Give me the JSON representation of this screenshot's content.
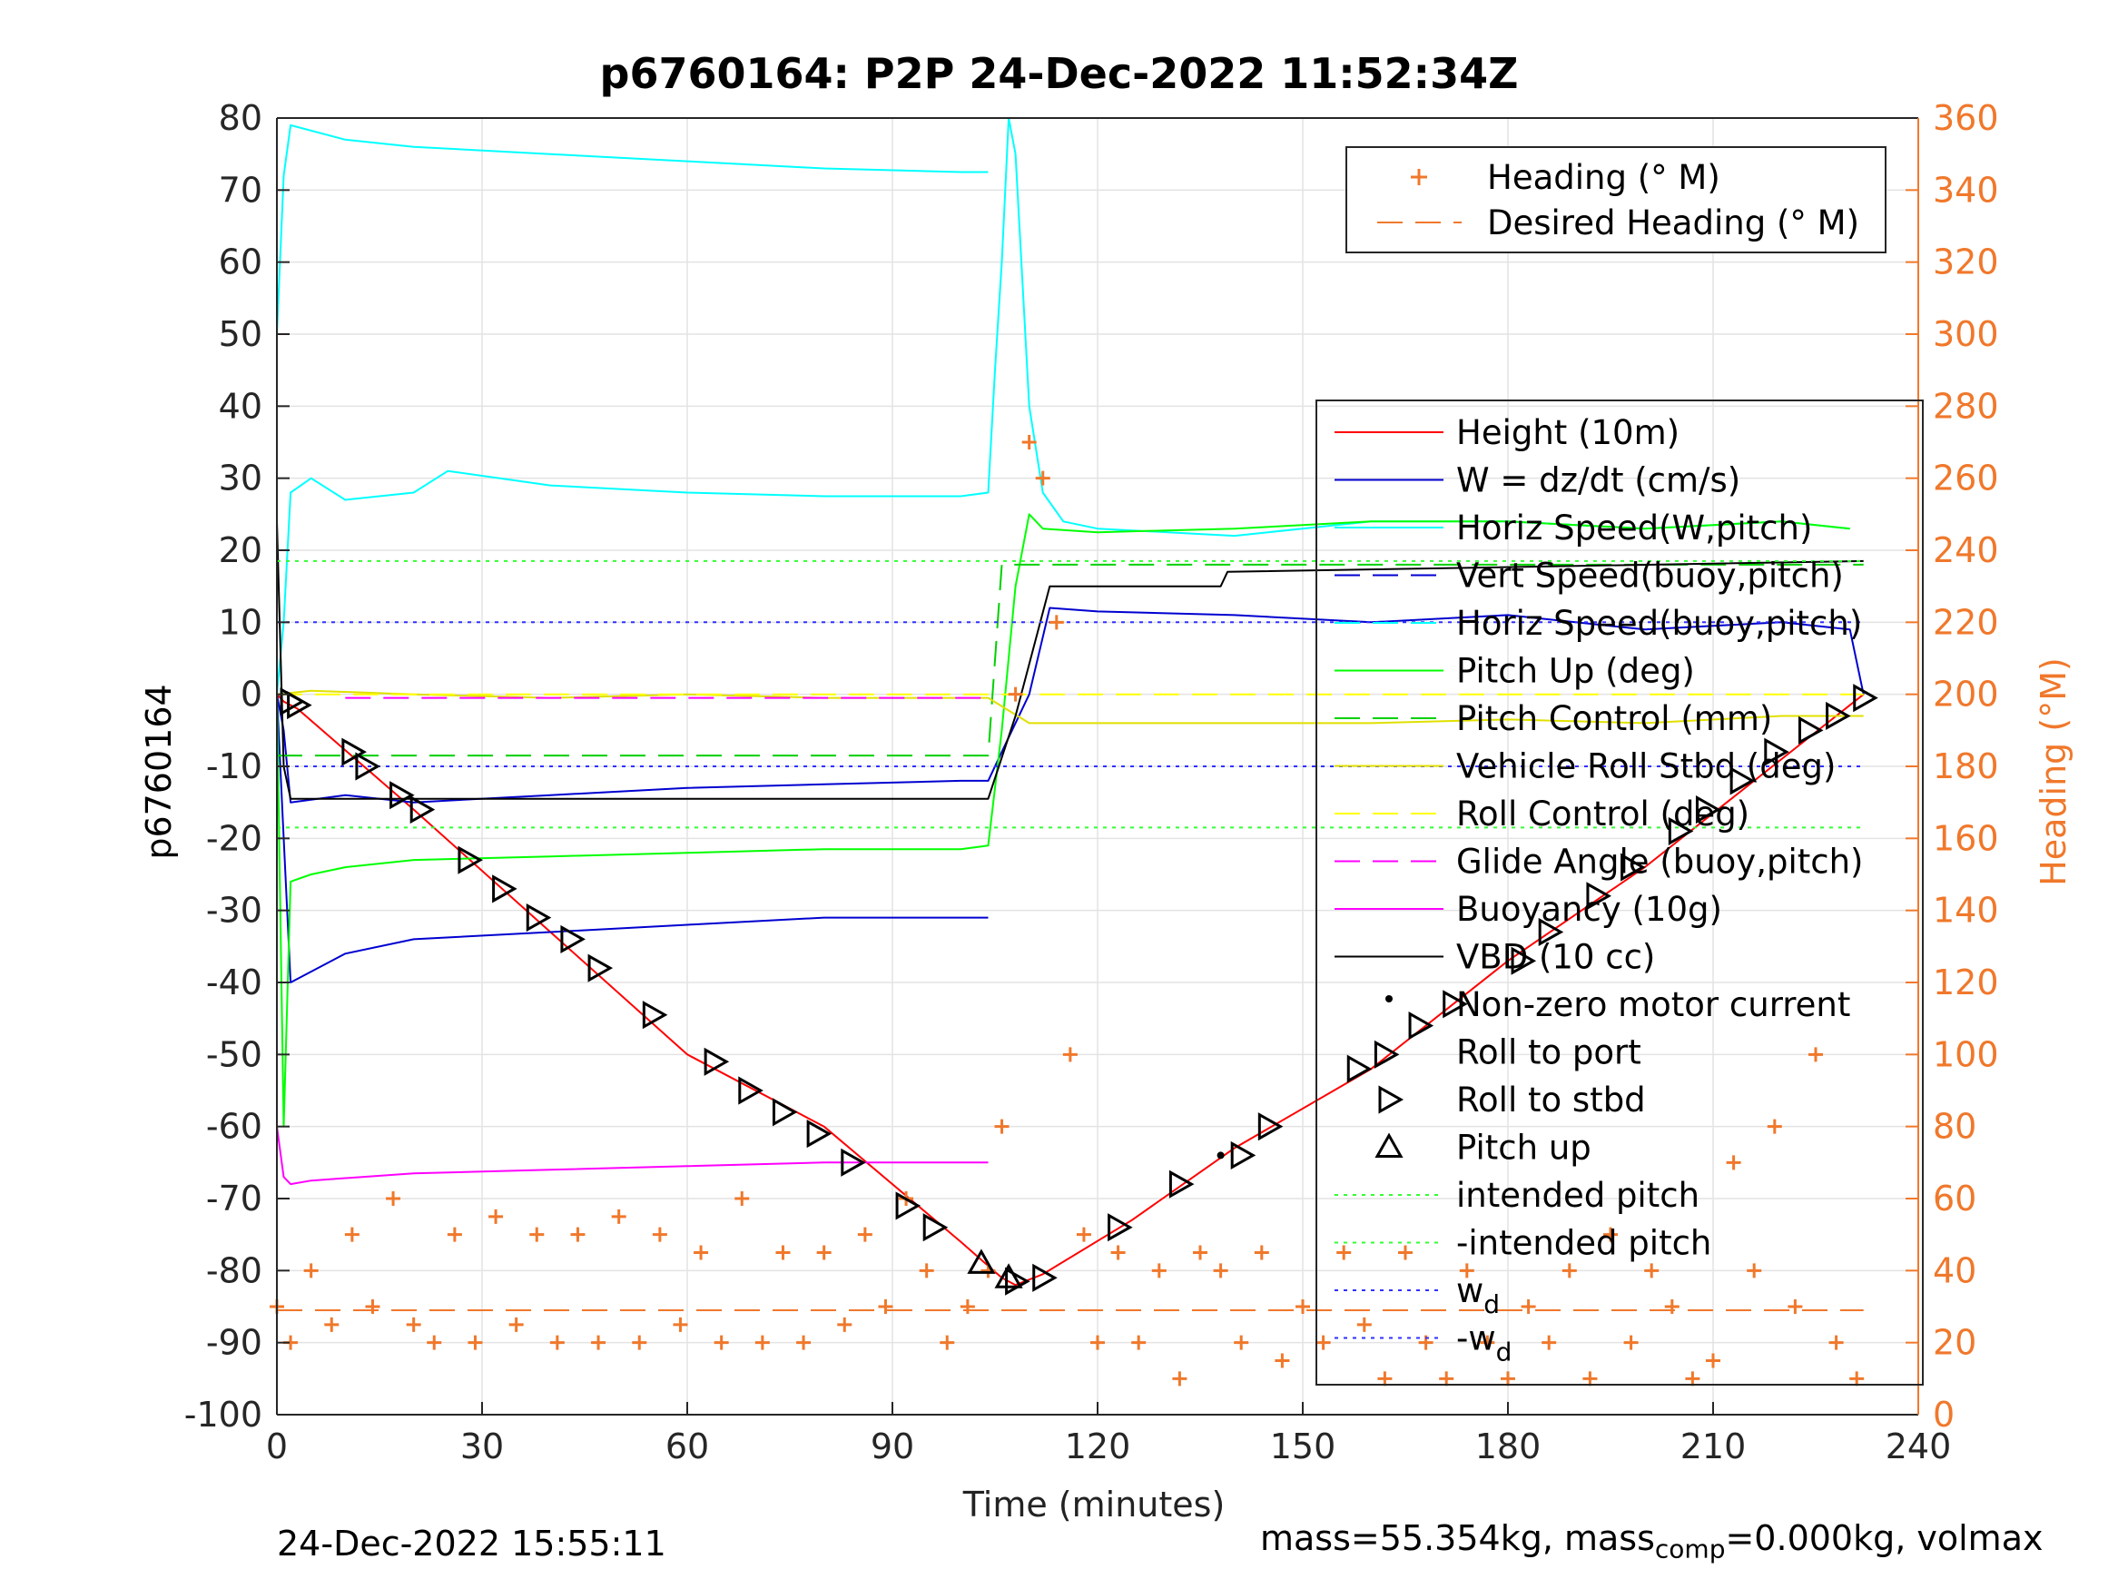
{
  "chart_data": {
    "type": "line",
    "title": "p6760164: P2P 24-Dec-2022 11:52:34Z",
    "xlabel": "Time (minutes)",
    "ylabel_left": "p6760164",
    "ylabel_right": "Heading (°M)",
    "xlim": [
      0,
      240
    ],
    "ylim_left": [
      -100,
      80
    ],
    "ylim_right": [
      0,
      360
    ],
    "x_ticks": [
      "0",
      "30",
      "60",
      "90",
      "120",
      "150",
      "180",
      "210",
      "240"
    ],
    "y_left_ticks": [
      "80",
      "70",
      "60",
      "50",
      "40",
      "30",
      "20",
      "10",
      "0",
      "-10",
      "-20",
      "-30",
      "-40",
      "-50",
      "-60",
      "-70",
      "-80",
      "-90",
      "-100"
    ],
    "y_right_ticks": [
      "360",
      "340",
      "320",
      "300",
      "280",
      "260",
      "240",
      "220",
      "200",
      "180",
      "160",
      "140",
      "120",
      "100",
      "80",
      "60",
      "40",
      "20",
      "0"
    ],
    "grid": true,
    "legend_top": {
      "placement": "top-right",
      "entries": [
        "Heading (° M)",
        "Desired Heading (° M)"
      ]
    },
    "legend_main": {
      "placement": "right",
      "entries": [
        "Height (10m)",
        "W = dz/dt (cm/s)",
        "Horiz Speed(W,pitch)",
        "Vert Speed(buoy,pitch)",
        "Horiz Speed(buoy,pitch)",
        "Pitch Up (deg)",
        "Pitch Control (mm)",
        "Vehicle Roll Stbd (deg)",
        "Roll Control (deg)",
        "Glide Angle (buoy,pitch)",
        "Buoyancy (10g)",
        "VBD (10 cc)",
        "Non-zero motor current",
        "Roll to port",
        "Roll to stbd",
        "Pitch up",
        "intended pitch",
        "-intended pitch",
        "w",
        "-w"
      ],
      "subscript": "d"
    },
    "series": [
      {
        "name": "Height (10m)",
        "color": "#ff0000",
        "x": [
          0,
          1,
          3,
          20,
          40,
          60,
          80,
          100,
          106,
          108,
          112,
          125,
          140,
          160,
          180,
          200,
          220,
          232
        ],
        "y": [
          0,
          -1,
          -2,
          -16,
          -33,
          -50,
          -60,
          -76,
          -81,
          -82,
          -80.5,
          -73,
          -63,
          -52,
          -37,
          -24,
          -9,
          0
        ]
      },
      {
        "name": "W = dz/dt (cm/s)",
        "color": "#0000d0",
        "x": [
          0,
          1,
          2,
          10,
          20,
          40,
          60,
          80,
          100,
          104,
          106,
          110,
          113,
          120,
          140,
          160,
          180,
          200,
          220,
          230,
          232
        ],
        "y": [
          0,
          -5,
          -15,
          -14,
          -15,
          -14,
          -13,
          -12.5,
          -12,
          -12,
          -8,
          0,
          12,
          11.5,
          11,
          10,
          11,
          9,
          10,
          9,
          0
        ]
      },
      {
        "name": "Horiz Speed(W,pitch)",
        "color": "#00ffff",
        "x": [
          0,
          1,
          2,
          5,
          10,
          20,
          25,
          40,
          60,
          80,
          100,
          104,
          105,
          106,
          107,
          108,
          110,
          112,
          115,
          120,
          140,
          160,
          180,
          200,
          220,
          230
        ],
        "y": [
          0,
          10,
          28,
          30,
          27,
          28,
          31,
          29,
          28,
          27.5,
          27.5,
          28,
          45,
          60,
          80,
          75,
          40,
          28,
          24,
          23,
          22,
          24,
          24,
          23,
          24,
          23
        ]
      },
      {
        "name": "Vert Speed(buoy,pitch)",
        "color": "#0000d0",
        "x": [
          0,
          1,
          2,
          10,
          20,
          40,
          60,
          80,
          100,
          104
        ],
        "y": [
          0,
          -20,
          -40,
          -36,
          -34,
          -33,
          -32,
          -31,
          -31,
          -31
        ]
      },
      {
        "name": "Horiz Speed(buoy,pitch)",
        "color": "#00ffff",
        "x": [
          0,
          1,
          2,
          10,
          20,
          40,
          60,
          80,
          100,
          104
        ],
        "y": [
          50,
          72,
          79,
          77,
          76,
          75,
          74,
          73,
          72.5,
          72.5
        ]
      },
      {
        "name": "Pitch Up (deg)",
        "color": "#00ff00",
        "x": [
          0,
          1,
          2,
          5,
          10,
          20,
          40,
          60,
          80,
          100,
          104,
          106,
          108,
          110,
          112,
          120,
          140,
          160,
          180,
          200,
          220,
          230
        ],
        "y": [
          0,
          -60,
          -26,
          -25,
          -24,
          -23,
          -22.5,
          -22,
          -21.5,
          -21.5,
          -21,
          -5,
          15,
          25,
          23,
          22.5,
          23,
          24,
          24,
          23,
          24,
          23
        ]
      },
      {
        "name": "Pitch Control (mm)",
        "color": "#00d000",
        "x": [
          0,
          104,
          106,
          232
        ],
        "y": [
          -8.5,
          -8.5,
          18,
          18
        ]
      },
      {
        "name": "Vehicle Roll Stbd (deg)",
        "color": "#e0e000",
        "x": [
          0,
          5,
          20,
          40,
          60,
          80,
          100,
          104,
          110,
          120,
          140,
          160,
          180,
          200,
          220,
          232
        ],
        "y": [
          0,
          0.5,
          0,
          -0.5,
          0,
          -0.5,
          -0.5,
          -0.5,
          -4,
          -4,
          -4,
          -4,
          -3.5,
          -4,
          -3,
          -3
        ]
      },
      {
        "name": "Roll Control (deg)",
        "color": "#ffff00",
        "x": [
          0,
          232
        ],
        "y": [
          0,
          0
        ]
      },
      {
        "name": "Glide Angle (buoy,pitch)",
        "color": "#ff00ff",
        "x": [
          10,
          104
        ],
        "y": [
          -0.5,
          -0.5
        ]
      },
      {
        "name": "Buoyancy (10g)",
        "color": "#ff00ff",
        "x": [
          0,
          1,
          2,
          5,
          20,
          40,
          60,
          80,
          100,
          104
        ],
        "y": [
          -60,
          -67,
          -68,
          -67.5,
          -66.5,
          -66,
          -65.5,
          -65,
          -65,
          -65
        ]
      },
      {
        "name": "VBD (10 cc)",
        "color": "#000000",
        "x": [
          0,
          1,
          2,
          20,
          40,
          60,
          80,
          104,
          108,
          113,
          114,
          138,
          139,
          232
        ],
        "y": [
          24,
          -10,
          -14.5,
          -14.5,
          -14.5,
          -14.5,
          -14.5,
          -14.5,
          -3,
          15,
          15,
          15,
          17,
          18.5
        ]
      },
      {
        "name": "intended pitch",
        "color": "#30ff30",
        "x": [
          0,
          232
        ],
        "y": [
          18.5,
          18.5
        ]
      },
      {
        "name": "-intended pitch",
        "color": "#30ff30",
        "x": [
          0,
          232
        ],
        "y": [
          -18.5,
          -18.5
        ]
      },
      {
        "name": "w",
        "color": "#3030ff",
        "x": [
          0,
          232
        ],
        "y": [
          10,
          10
        ]
      },
      {
        "name": "-w",
        "color": "#3030ff",
        "x": [
          0,
          232
        ],
        "y": [
          -10,
          -10
        ]
      }
    ],
    "heading": {
      "name": "Heading (° M)",
      "color": "#f0782b",
      "axis": "right",
      "x": [
        0,
        2,
        5,
        8,
        11,
        14,
        17,
        20,
        23,
        26,
        29,
        32,
        35,
        38,
        41,
        44,
        47,
        50,
        53,
        56,
        59,
        62,
        65,
        68,
        71,
        74,
        77,
        80,
        83,
        86,
        89,
        92,
        95,
        98,
        101,
        104,
        106,
        108,
        110,
        112,
        114,
        116,
        118,
        120,
        123,
        126,
        129,
        132,
        135,
        138,
        141,
        144,
        147,
        150,
        153,
        156,
        159,
        162,
        165,
        168,
        171,
        174,
        177,
        180,
        183,
        186,
        189,
        192,
        195,
        198,
        201,
        204,
        207,
        210,
        213,
        216,
        219,
        222,
        225,
        228,
        231
      ],
      "y": [
        30,
        20,
        40,
        25,
        50,
        30,
        60,
        25,
        20,
        50,
        20,
        55,
        25,
        50,
        20,
        50,
        20,
        55,
        20,
        50,
        25,
        45,
        20,
        60,
        20,
        45,
        20,
        45,
        25,
        50,
        30,
        60,
        40,
        20,
        30,
        40,
        80,
        200,
        270,
        260,
        220,
        100,
        50,
        20,
        45,
        20,
        40,
        10,
        45,
        40,
        20,
        45,
        15,
        30,
        20,
        45,
        25,
        10,
        45,
        20,
        10,
        40,
        20,
        10,
        30,
        20,
        40,
        10,
        50,
        20,
        40,
        30,
        10,
        15,
        70,
        40,
        80,
        30,
        100,
        20,
        10
      ]
    },
    "desired_heading": {
      "name": "Desired Heading (° M)",
      "color": "#f0782b",
      "axis": "right",
      "x": [
        0,
        232
      ],
      "y": [
        29,
        29
      ]
    },
    "markers": {
      "roll_to_stbd": [
        [
          2,
          -1
        ],
        [
          3,
          -1.5
        ],
        [
          11,
          -8
        ],
        [
          13,
          -10
        ],
        [
          18,
          -14
        ],
        [
          21,
          -16
        ],
        [
          28,
          -23
        ],
        [
          33,
          -27
        ],
        [
          38,
          -31
        ],
        [
          43,
          -34
        ],
        [
          47,
          -38
        ],
        [
          55,
          -44.5
        ],
        [
          64,
          -51
        ],
        [
          69,
          -55
        ],
        [
          74,
          -58
        ],
        [
          79,
          -61
        ],
        [
          84,
          -65
        ],
        [
          92,
          -71
        ],
        [
          96,
          -74
        ],
        [
          108,
          -81.5
        ],
        [
          112,
          -81
        ],
        [
          123,
          -74
        ],
        [
          132,
          -68
        ],
        [
          141,
          -64
        ],
        [
          145,
          -60
        ],
        [
          158,
          -52
        ],
        [
          162,
          -50
        ],
        [
          167,
          -46
        ],
        [
          172,
          -43
        ],
        [
          182,
          -37
        ],
        [
          186,
          -33
        ],
        [
          193,
          -28
        ],
        [
          198,
          -24
        ],
        [
          205,
          -19
        ],
        [
          209,
          -16
        ],
        [
          214,
          -12
        ],
        [
          219,
          -8
        ],
        [
          224,
          -5
        ],
        [
          228,
          -3
        ],
        [
          232,
          -0.5
        ]
      ],
      "pitch_up": [
        [
          103,
          -79
        ],
        [
          107,
          -81
        ]
      ],
      "motor_current": [
        [
          138,
          -64
        ]
      ]
    }
  },
  "footer": {
    "date": "24-Dec-2022 15:55:11",
    "mass_prefix": "mass=55.354kg, mass",
    "mass_sub": "comp",
    "mass_suffix": "=0.000kg, volmax"
  }
}
